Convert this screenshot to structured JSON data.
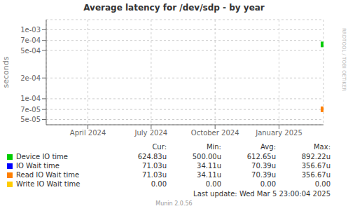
{
  "chart_data": {
    "type": "scatter",
    "title": "Average latency for /dev/sdp - by year",
    "y_label": "seconds",
    "log": "y",
    "grid": true,
    "xlim": [
      1706745600,
      1741219200
    ],
    "xticks": [
      {
        "value": 1711929600,
        "label": "April 2024"
      },
      {
        "value": 1719792000,
        "label": "July 2024"
      },
      {
        "value": 1727740800,
        "label": "October 2024"
      },
      {
        "value": 1735689600,
        "label": "January 2025"
      }
    ],
    "ylim": [
      4.2e-05,
      0.0014
    ],
    "yticks": [
      {
        "value": 5e-05,
        "label": "5e-05"
      },
      {
        "value": 7e-05,
        "label": "7e-05"
      },
      {
        "value": 0.0001,
        "label": "1e-04"
      },
      {
        "value": 0.0002,
        "label": "2e-04"
      },
      {
        "value": 0.0005,
        "label": "5e-04"
      },
      {
        "value": 0.0007,
        "label": "7e-04"
      },
      {
        "value": 0.001,
        "label": "1e-03"
      }
    ],
    "stat_headers": [
      "Cur:",
      "Min:",
      "Avg:",
      "Max:"
    ],
    "series": [
      {
        "name": "Device IO time",
        "color": "#00cc00",
        "marker": "square",
        "x": [
          1741219200
        ],
        "values": [
          0.0006126
        ],
        "stats": [
          "624.83u",
          "500.00u",
          "612.65u",
          "892.22u"
        ]
      },
      {
        "name": "IO Wait time",
        "color": "#0000ff",
        "x": [],
        "values": [],
        "stats": [
          "71.03u",
          "34.11u",
          "70.39u",
          "356.67u"
        ]
      },
      {
        "name": "Read IO Wait time",
        "color": "#ff7f00",
        "marker": "square",
        "x": [
          1741219200
        ],
        "values": [
          7.039e-05
        ],
        "stats": [
          "71.03u",
          "34.11u",
          "70.39u",
          "356.67u"
        ]
      },
      {
        "name": "Write IO Wait time",
        "color": "#ffcc00",
        "x": [],
        "values": [],
        "stats": [
          "0.00",
          "0.00",
          "0.00",
          "0.00"
        ]
      }
    ],
    "watermark": "RRDTOOL / TOBI OETIKER",
    "last_update": "Last update: Wed Mar  5 23:00:04 2025",
    "footer": "Munin 2.0.56"
  }
}
